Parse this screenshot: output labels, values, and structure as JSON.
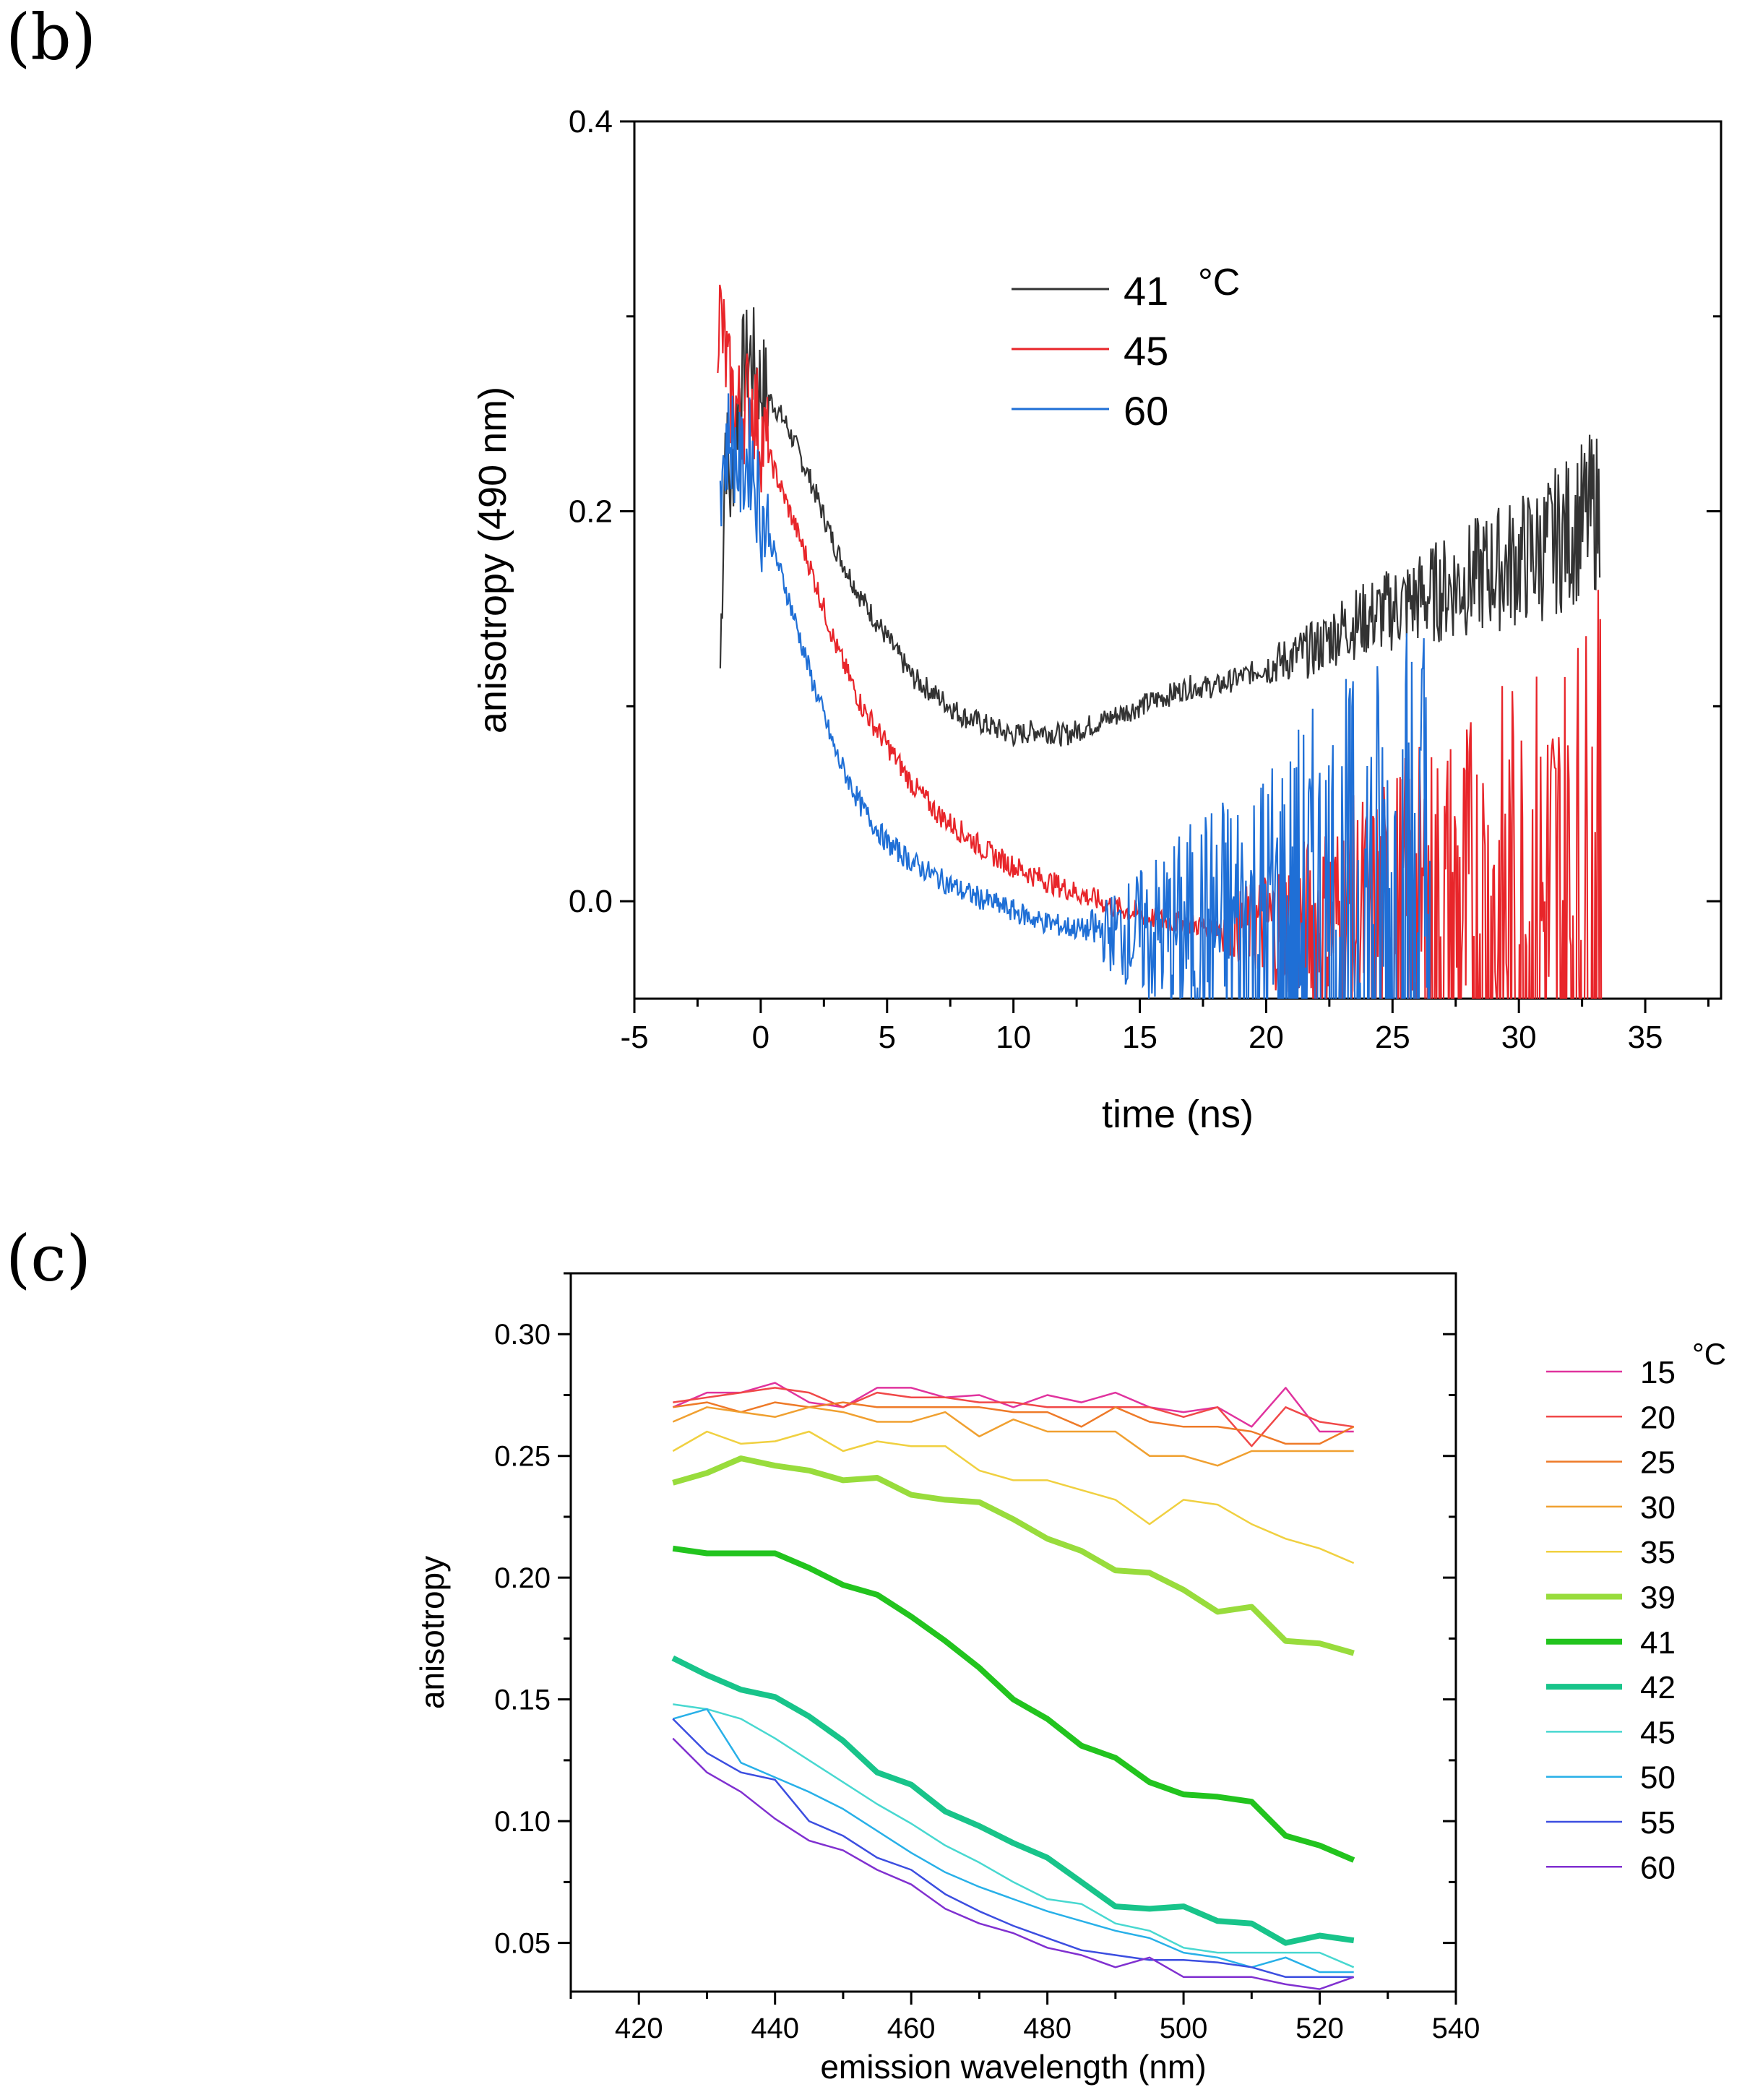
{
  "panels": {
    "b": "(b)",
    "c": "(c)"
  },
  "chart_data": [
    {
      "type": "line",
      "panel": "(b)",
      "xlabel": "time (ns)",
      "ylabel": "anisotropy (490 nm)",
      "xlim": [
        -5,
        38
      ],
      "ylim": [
        -0.05,
        0.4
      ],
      "xticks": [
        -5,
        0,
        5,
        10,
        15,
        20,
        25,
        30,
        35
      ],
      "xtick_labels": [
        "-5",
        "0",
        "5",
        "10",
        "15",
        "20",
        "25",
        "30",
        "35"
      ],
      "yticks": [
        0.0,
        0.2,
        0.4
      ],
      "ytick_labels": [
        "0.0",
        "0.2",
        "0.4"
      ],
      "legend_title": "°C",
      "legend_position": "upper-center",
      "series": [
        {
          "name": "41",
          "color": "#333333",
          "x_range": [
            -1.6,
            33.2
          ],
          "points": [
            [
              -1.6,
              0.12
            ],
            [
              -1.4,
              0.24
            ],
            [
              -1.2,
              0.21
            ],
            [
              -0.8,
              0.27
            ],
            [
              -0.4,
              0.28
            ],
            [
              0,
              0.265
            ],
            [
              1,
              0.245
            ],
            [
              2,
              0.215
            ],
            [
              3,
              0.18
            ],
            [
              4,
              0.155
            ],
            [
              5,
              0.135
            ],
            [
              6,
              0.115
            ],
            [
              7,
              0.105
            ],
            [
              8,
              0.095
            ],
            [
              9,
              0.09
            ],
            [
              10,
              0.085
            ],
            [
              11,
              0.088
            ],
            [
              12,
              0.085
            ],
            [
              13,
              0.09
            ],
            [
              14,
              0.095
            ],
            [
              15,
              0.1
            ],
            [
              16,
              0.105
            ],
            [
              17,
              0.11
            ],
            [
              18,
              0.11
            ],
            [
              19,
              0.115
            ],
            [
              20,
              0.12
            ],
            [
              21,
              0.125
            ],
            [
              22,
              0.13
            ],
            [
              23,
              0.14
            ],
            [
              24,
              0.145
            ],
            [
              25,
              0.15
            ],
            [
              26,
              0.155
            ],
            [
              27,
              0.16
            ],
            [
              28,
              0.165
            ],
            [
              29,
              0.17
            ],
            [
              30,
              0.175
            ],
            [
              31,
              0.18
            ],
            [
              32,
              0.19
            ],
            [
              33,
              0.2
            ]
          ]
        },
        {
          "name": "45",
          "color": "#e8252a",
          "x_range": [
            -1.7,
            33.3
          ],
          "points": [
            [
              -1.6,
              0.3
            ],
            [
              -1.2,
              0.26
            ],
            [
              -0.8,
              0.25
            ],
            [
              -0.4,
              0.26
            ],
            [
              0,
              0.24
            ],
            [
              1,
              0.205
            ],
            [
              2,
              0.17
            ],
            [
              3,
              0.13
            ],
            [
              4,
              0.1
            ],
            [
              5,
              0.08
            ],
            [
              6,
              0.06
            ],
            [
              7,
              0.045
            ],
            [
              8,
              0.035
            ],
            [
              9,
              0.025
            ],
            [
              10,
              0.018
            ],
            [
              11,
              0.012
            ],
            [
              12,
              0.007
            ],
            [
              13,
              0.002
            ],
            [
              14,
              -0.003
            ],
            [
              15,
              -0.007
            ],
            [
              16,
              -0.01
            ],
            [
              17,
              -0.012
            ],
            [
              18,
              -0.013
            ],
            [
              19,
              -0.013
            ],
            [
              20,
              -0.012
            ],
            [
              21,
              -0.012
            ],
            [
              22,
              -0.012
            ],
            [
              23,
              -0.01
            ],
            [
              24,
              -0.01
            ],
            [
              25,
              -0.008
            ],
            [
              26,
              -0.01
            ],
            [
              27,
              -0.01
            ],
            [
              28,
              -0.01
            ],
            [
              29,
              -0.01
            ],
            [
              30,
              -0.01
            ],
            [
              31,
              -0.01
            ],
            [
              32,
              -0.01
            ],
            [
              33,
              0.0
            ]
          ]
        },
        {
          "name": "60",
          "color": "#1f6fd6",
          "x_range": [
            -1.6,
            26.5
          ],
          "points": [
            [
              -1.6,
              0.22
            ],
            [
              -1.2,
              0.24
            ],
            [
              -0.8,
              0.22
            ],
            [
              -0.4,
              0.23
            ],
            [
              0,
              0.2
            ],
            [
              1,
              0.16
            ],
            [
              2,
              0.115
            ],
            [
              3,
              0.075
            ],
            [
              4,
              0.048
            ],
            [
              5,
              0.03
            ],
            [
              6,
              0.02
            ],
            [
              7,
              0.012
            ],
            [
              8,
              0.005
            ],
            [
              9,
              0.0
            ],
            [
              10,
              -0.005
            ],
            [
              11,
              -0.01
            ],
            [
              12,
              -0.013
            ],
            [
              13,
              -0.015
            ],
            [
              14,
              -0.016
            ],
            [
              15,
              -0.017
            ],
            [
              16,
              -0.017
            ],
            [
              17,
              -0.016
            ],
            [
              18,
              -0.015
            ],
            [
              19,
              -0.015
            ],
            [
              20,
              -0.015
            ],
            [
              21,
              -0.015
            ],
            [
              22,
              -0.015
            ],
            [
              23,
              -0.015
            ],
            [
              24,
              -0.015
            ],
            [
              25,
              -0.01
            ],
            [
              26,
              0.0
            ]
          ]
        }
      ]
    },
    {
      "type": "line",
      "panel": "(c)",
      "xlabel": "emission wavelength (nm)",
      "ylabel": "anisotropy",
      "xlim": [
        410,
        540
      ],
      "ylim": [
        0.03,
        0.325
      ],
      "xticks": [
        420,
        440,
        460,
        480,
        500,
        520,
        540
      ],
      "xtick_labels": [
        "420",
        "440",
        "460",
        "480",
        "500",
        "520",
        "540"
      ],
      "yticks": [
        0.05,
        0.1,
        0.15,
        0.2,
        0.25,
        0.3
      ],
      "ytick_labels": [
        "0.05",
        "0.10",
        "0.15",
        "0.20",
        "0.25",
        "0.30"
      ],
      "legend_title": "°C",
      "legend_position": "right",
      "x": [
        425,
        430,
        435,
        440,
        445,
        450,
        455,
        460,
        465,
        470,
        475,
        480,
        485,
        490,
        495,
        500,
        505,
        510,
        515,
        520,
        525
      ],
      "series": [
        {
          "name": "15",
          "color": "#e0339e",
          "bold": false,
          "values": [
            0.27,
            0.276,
            0.276,
            0.28,
            0.272,
            0.27,
            0.278,
            0.278,
            0.274,
            0.275,
            0.27,
            0.275,
            0.272,
            0.276,
            0.27,
            0.268,
            0.27,
            0.262,
            0.278,
            0.26,
            0.26
          ]
        },
        {
          "name": "20",
          "color": "#f04848",
          "bold": false,
          "values": [
            0.272,
            0.274,
            0.276,
            0.278,
            0.276,
            0.27,
            0.276,
            0.274,
            0.274,
            0.272,
            0.272,
            0.27,
            0.27,
            0.27,
            0.27,
            0.266,
            0.27,
            0.254,
            0.27,
            0.264,
            0.262
          ]
        },
        {
          "name": "25",
          "color": "#ee7a28",
          "bold": false,
          "values": [
            0.27,
            0.272,
            0.268,
            0.272,
            0.27,
            0.272,
            0.27,
            0.27,
            0.27,
            0.27,
            0.268,
            0.268,
            0.262,
            0.27,
            0.264,
            0.262,
            0.262,
            0.26,
            0.255,
            0.255,
            0.262
          ]
        },
        {
          "name": "30",
          "color": "#f0a030",
          "bold": false,
          "values": [
            0.264,
            0.27,
            0.268,
            0.266,
            0.27,
            0.268,
            0.264,
            0.264,
            0.268,
            0.258,
            0.265,
            0.26,
            0.26,
            0.26,
            0.25,
            0.25,
            0.246,
            0.252,
            0.252,
            0.252,
            0.252
          ]
        },
        {
          "name": "35",
          "color": "#f0d040",
          "bold": false,
          "values": [
            0.252,
            0.26,
            0.255,
            0.256,
            0.26,
            0.252,
            0.256,
            0.254,
            0.254,
            0.244,
            0.24,
            0.24,
            0.236,
            0.232,
            0.222,
            0.232,
            0.23,
            0.222,
            0.216,
            0.212,
            0.206
          ]
        },
        {
          "name": "39",
          "color": "#98dc3c",
          "bold": true,
          "values": [
            0.239,
            0.243,
            0.249,
            0.246,
            0.244,
            0.24,
            0.241,
            0.234,
            0.232,
            0.231,
            0.224,
            0.216,
            0.211,
            0.203,
            0.202,
            0.195,
            0.186,
            0.188,
            0.174,
            0.173,
            0.169
          ]
        },
        {
          "name": "41",
          "color": "#22c41e",
          "bold": true,
          "values": [
            0.212,
            0.21,
            0.21,
            0.21,
            0.204,
            0.197,
            0.193,
            0.184,
            0.174,
            0.163,
            0.15,
            0.142,
            0.131,
            0.126,
            0.116,
            0.111,
            0.11,
            0.108,
            0.094,
            0.09,
            0.084
          ]
        },
        {
          "name": "42",
          "color": "#18c48a",
          "bold": true,
          "values": [
            0.167,
            0.16,
            0.154,
            0.151,
            0.143,
            0.133,
            0.12,
            0.115,
            0.104,
            0.098,
            0.091,
            0.085,
            0.075,
            0.065,
            0.064,
            0.065,
            0.059,
            0.058,
            0.05,
            0.053,
            0.051
          ]
        },
        {
          "name": "45",
          "color": "#48d8d0",
          "bold": false,
          "values": [
            0.148,
            0.146,
            0.142,
            0.134,
            0.125,
            0.116,
            0.107,
            0.099,
            0.09,
            0.083,
            0.075,
            0.068,
            0.066,
            0.058,
            0.055,
            0.048,
            0.046,
            0.046,
            0.046,
            0.046,
            0.04
          ]
        },
        {
          "name": "50",
          "color": "#28b0e8",
          "bold": false,
          "values": [
            0.142,
            0.146,
            0.124,
            0.118,
            0.112,
            0.105,
            0.096,
            0.087,
            0.079,
            0.073,
            0.068,
            0.063,
            0.059,
            0.055,
            0.052,
            0.046,
            0.044,
            0.04,
            0.044,
            0.038,
            0.038
          ]
        },
        {
          "name": "55",
          "color": "#3c4ee0",
          "bold": false,
          "values": [
            0.142,
            0.128,
            0.12,
            0.117,
            0.1,
            0.094,
            0.085,
            0.08,
            0.07,
            0.063,
            0.057,
            0.052,
            0.047,
            0.045,
            0.043,
            0.043,
            0.042,
            0.04,
            0.036,
            0.036,
            0.036
          ]
        },
        {
          "name": "60",
          "color": "#8030d0",
          "bold": false,
          "values": [
            0.134,
            0.12,
            0.112,
            0.101,
            0.092,
            0.088,
            0.08,
            0.074,
            0.064,
            0.058,
            0.054,
            0.048,
            0.045,
            0.04,
            0.044,
            0.036,
            0.036,
            0.036,
            0.033,
            0.031,
            0.036
          ]
        }
      ]
    }
  ]
}
